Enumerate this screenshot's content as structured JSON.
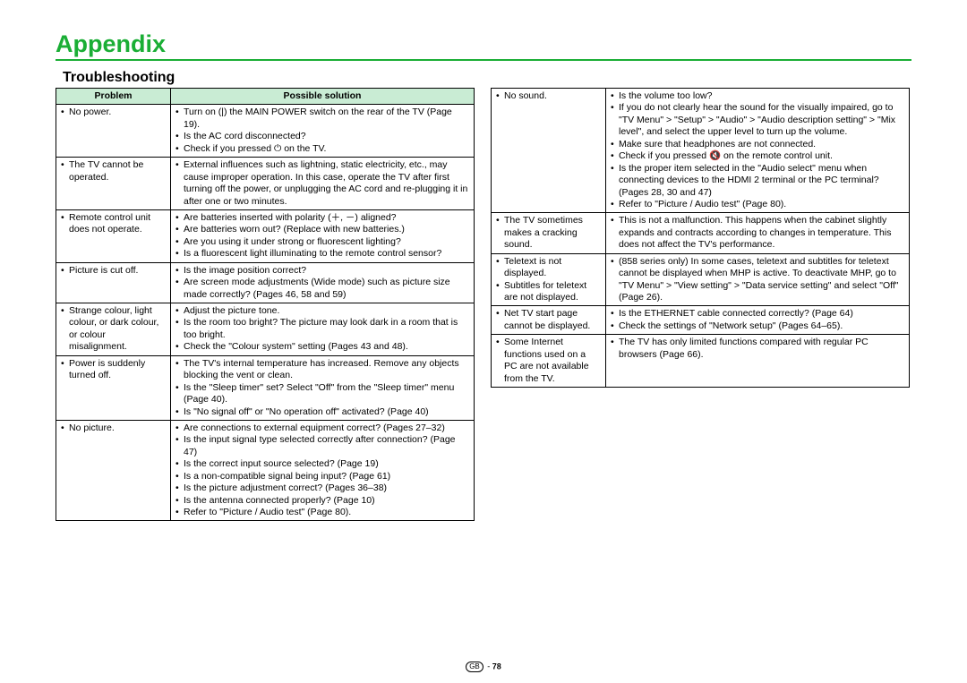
{
  "colors": {
    "accent_green": "#1aae35",
    "header_bg": "#c9ecd4",
    "border": "#000000",
    "text": "#000000",
    "bg": "#ffffff"
  },
  "typography": {
    "title_fontsize": 27,
    "section_fontsize": 16,
    "table_fontsize": 10.5
  },
  "page": {
    "title": "Appendix",
    "section": "Troubleshooting",
    "footer_region": "GB",
    "footer_page": "78"
  },
  "headers": {
    "problem": "Problem",
    "solution": "Possible solution"
  },
  "left_rows": [
    {
      "problem": [
        "No power."
      ],
      "solution": [
        "Turn on (|) the MAIN POWER switch on the rear of the TV (Page 19).",
        "Is the AC cord disconnected?",
        "Check if you pressed ⏻ on the TV."
      ]
    },
    {
      "problem": [
        "The TV cannot be operated."
      ],
      "solution": [
        "External influences such as lightning, static electricity, etc., may cause improper operation. In this case, operate the TV after first turning off the power, or unplugging the AC cord and re-plugging it in after one or two minutes."
      ]
    },
    {
      "problem": [
        "Remote control unit does not operate."
      ],
      "solution": [
        "Are batteries inserted with polarity (＋, －) aligned?",
        "Are batteries worn out? (Replace with new batteries.)",
        "Are you using it under strong or fluorescent lighting?",
        "Is a fluorescent light illuminating to the remote control sensor?"
      ]
    },
    {
      "problem": [
        "Picture is cut off."
      ],
      "solution": [
        "Is the image position correct?",
        "Are screen mode adjustments (Wide mode) such as picture size made correctly? (Pages 46, 58 and 59)"
      ]
    },
    {
      "problem": [
        "Strange colour, light colour, or dark colour, or colour misalignment."
      ],
      "solution": [
        "Adjust the picture tone.",
        "Is the room too bright? The picture may look dark in a room that is too bright.",
        "Check the \"Colour system\" setting (Pages 43 and 48)."
      ]
    },
    {
      "problem": [
        "Power is suddenly turned off."
      ],
      "solution": [
        "The TV's internal temperature has increased. Remove any objects blocking the vent or clean.",
        "Is the \"Sleep timer\" set? Select \"Off\" from the \"Sleep timer\" menu (Page 40).",
        "Is \"No signal off\" or \"No operation off\" activated? (Page 40)"
      ]
    },
    {
      "problem": [
        "No picture."
      ],
      "solution": [
        "Are connections to external equipment correct? (Pages 27–32)",
        "Is the input signal type selected correctly after connection? (Page 47)",
        "Is the correct input source selected? (Page 19)",
        "Is a non-compatible signal being input? (Page 61)",
        "Is the picture adjustment correct? (Pages 36–38)",
        "Is the antenna connected properly? (Page 10)",
        "Refer to \"Picture / Audio test\" (Page 80)."
      ]
    }
  ],
  "right_rows": [
    {
      "problem": [
        "No sound."
      ],
      "solution": [
        "Is the volume too low?",
        "If you do not clearly hear the sound for the visually impaired, go to \"TV Menu\" > \"Setup\" > \"Audio\" > \"Audio description setting\" > \"Mix level\", and select the upper level to turn up the volume.",
        "Make sure that headphones are not connected.",
        "Check if you pressed 🔇 on the remote control unit.",
        "Is the proper item selected in the \"Audio select\" menu when connecting devices to the HDMI 2 terminal or the PC terminal? (Pages 28, 30 and 47)",
        "Refer to \"Picture / Audio test\" (Page 80)."
      ]
    },
    {
      "problem": [
        "The TV sometimes makes a cracking sound."
      ],
      "solution": [
        "This is not a malfunction. This happens when the cabinet slightly expands and contracts according to changes in temperature. This does not affect the TV's performance."
      ]
    },
    {
      "problem": [
        "Teletext is not displayed.",
        "Subtitles for teletext are not displayed."
      ],
      "solution": [
        "(858 series only) In some cases, teletext and subtitles for teletext cannot be displayed when MHP is active. To deactivate MHP, go to \"TV Menu\" > \"View setting\" > \"Data service setting\" and select \"Off\" (Page 26)."
      ]
    },
    {
      "problem": [
        "Net TV start page cannot be displayed."
      ],
      "solution": [
        "Is the ETHERNET cable connected correctly? (Page 64)",
        "Check the settings of \"Network setup\" (Pages 64–65)."
      ]
    },
    {
      "problem": [
        "Some Internet functions used on a PC are not available from the TV."
      ],
      "solution": [
        "The TV has only limited functions compared with regular PC browsers (Page 66)."
      ]
    }
  ]
}
